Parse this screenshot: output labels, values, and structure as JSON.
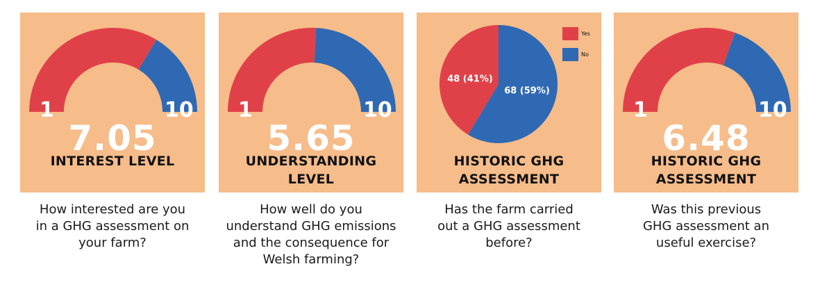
{
  "colors": {
    "panel_bg": "#f6bc8a",
    "red": "#e04148",
    "blue": "#2f69b3",
    "value_text": "#ffffff",
    "title_text": "#111111"
  },
  "panels": [
    {
      "type": "gauge",
      "value": "7.05",
      "min_label": "1",
      "max_label": "10",
      "title_lines": [
        "INTEREST LEVEL"
      ],
      "question": [
        "How interested are you",
        "in a GHG assessment on",
        "your farm?"
      ]
    },
    {
      "type": "gauge",
      "value": "5.65",
      "min_label": "1",
      "max_label": "10",
      "title_lines": [
        "UNDERSTANDING",
        "LEVEL"
      ],
      "question": [
        "How well do you",
        "understand GHG emissions",
        "and the consequence for",
        "Welsh farming?"
      ]
    },
    {
      "type": "pie",
      "title_lines": [
        "HISTORIC GHG",
        "ASSESSMENT"
      ],
      "legend": [
        {
          "label": "Yes",
          "color": "#e04148"
        },
        {
          "label": "No",
          "color": "#2f69b3"
        }
      ],
      "slice_labels": [
        "48 (41%)",
        "68 (59%)"
      ],
      "question": [
        "Has the farm carried",
        "out a GHG assessment",
        "before?"
      ]
    },
    {
      "type": "gauge",
      "value": "6.48",
      "min_label": "1",
      "max_label": "10",
      "title_lines": [
        "HISTORIC GHG",
        "ASSESSMENT"
      ],
      "question": [
        "Was this previous",
        "GHG assessment an",
        "useful exercise?"
      ]
    }
  ],
  "chart_data": [
    {
      "type": "gauge",
      "title": "INTEREST LEVEL",
      "value": 7.05,
      "min": 1,
      "max": 10,
      "subtitle": "How interested are you in a GHG assessment on your farm?"
    },
    {
      "type": "gauge",
      "title": "UNDERSTANDING LEVEL",
      "value": 5.65,
      "min": 1,
      "max": 10,
      "subtitle": "How well do you understand GHG emissions and the consequence for Welsh farming?"
    },
    {
      "type": "pie",
      "title": "HISTORIC GHG ASSESSMENT",
      "categories": [
        "Yes",
        "No"
      ],
      "values": [
        48,
        68
      ],
      "percentages": [
        41,
        59
      ],
      "legend_position": "top-right",
      "subtitle": "Has the farm carried out a GHG assessment before?"
    },
    {
      "type": "gauge",
      "title": "HISTORIC GHG ASSESSMENT",
      "value": 6.48,
      "min": 1,
      "max": 10,
      "subtitle": "Was this previous GHG assessment an useful exercise?"
    }
  ]
}
